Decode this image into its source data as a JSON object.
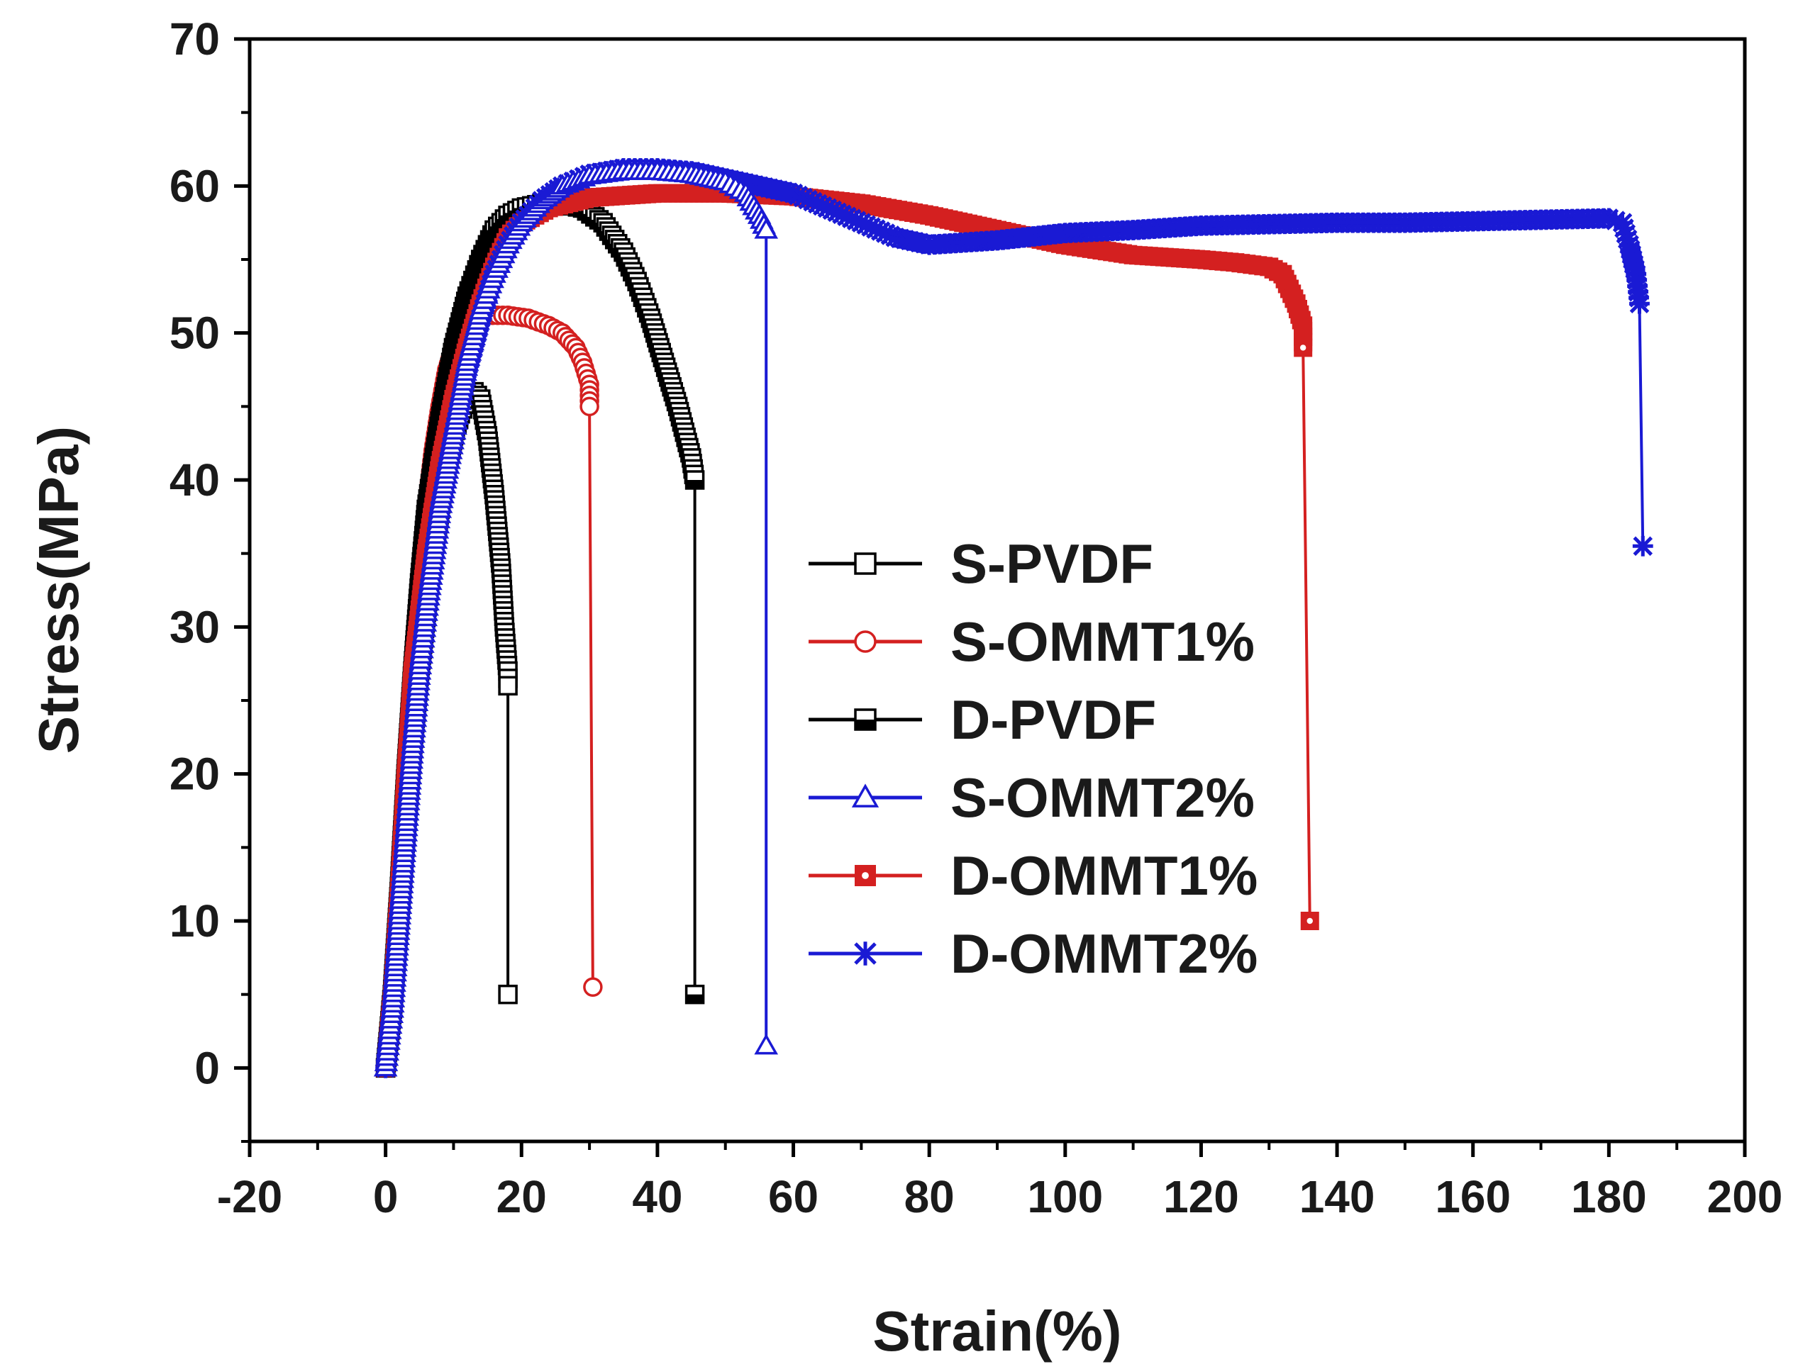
{
  "chart_data": {
    "type": "line",
    "title": "",
    "xlabel": "Strain(%)",
    "ylabel": "Stress(MPa)",
    "xlim": [
      -20,
      200
    ],
    "ylim": [
      -5,
      70
    ],
    "xticks": [
      "-20",
      "0",
      "20",
      "40",
      "60",
      "80",
      "100",
      "120",
      "140",
      "160",
      "180",
      "200"
    ],
    "yticks": [
      "0",
      "10",
      "20",
      "30",
      "40",
      "50",
      "60",
      "70"
    ],
    "grid": false,
    "legend_position": "center-right",
    "series": [
      {
        "name": "S-PVDF",
        "color": "#000000",
        "marker": "square-open",
        "points": [
          [
            0,
            0
          ],
          [
            1,
            4
          ],
          [
            2,
            10
          ],
          [
            3,
            16
          ],
          [
            4,
            22
          ],
          [
            5,
            27
          ],
          [
            6,
            31
          ],
          [
            7,
            35
          ],
          [
            8,
            38
          ],
          [
            9,
            41
          ],
          [
            10,
            43
          ],
          [
            11,
            44.5
          ],
          [
            12,
            45.5
          ],
          [
            13,
            46
          ],
          [
            14,
            45.5
          ],
          [
            15,
            43
          ],
          [
            16,
            39
          ],
          [
            17,
            34
          ],
          [
            17.5,
            30
          ],
          [
            18,
            27
          ],
          [
            18,
            26
          ],
          [
            18,
            5
          ]
        ]
      },
      {
        "name": "S-OMMT1%",
        "color": "#d42020",
        "marker": "circle-open",
        "points": [
          [
            0,
            0
          ],
          [
            1,
            5
          ],
          [
            2,
            12
          ],
          [
            3,
            20
          ],
          [
            4,
            27
          ],
          [
            5,
            33
          ],
          [
            6,
            38
          ],
          [
            7,
            42
          ],
          [
            8,
            45
          ],
          [
            9,
            47.5
          ],
          [
            10,
            49
          ],
          [
            12,
            50.5
          ],
          [
            15,
            51.2
          ],
          [
            18,
            51.2
          ],
          [
            21,
            51
          ],
          [
            24,
            50.5
          ],
          [
            26,
            50
          ],
          [
            28,
            49
          ],
          [
            29,
            48
          ],
          [
            30,
            46.5
          ],
          [
            30,
            45
          ],
          [
            30.5,
            5.5
          ]
        ]
      },
      {
        "name": "D-PVDF",
        "color": "#000000",
        "marker": "square-half",
        "points": [
          [
            0,
            0
          ],
          [
            1,
            5
          ],
          [
            2,
            12
          ],
          [
            3,
            20
          ],
          [
            4,
            27
          ],
          [
            5,
            33
          ],
          [
            6,
            38
          ],
          [
            8,
            44
          ],
          [
            10,
            49
          ],
          [
            12,
            52.5
          ],
          [
            14,
            55
          ],
          [
            16,
            57
          ],
          [
            18,
            58
          ],
          [
            20,
            58.5
          ],
          [
            23,
            58.8
          ],
          [
            26,
            58.8
          ],
          [
            29,
            58.5
          ],
          [
            32,
            57.5
          ],
          [
            35,
            55.5
          ],
          [
            37,
            53.5
          ],
          [
            39,
            51
          ],
          [
            41,
            48
          ],
          [
            43,
            45
          ],
          [
            45,
            41.5
          ],
          [
            45.5,
            40
          ],
          [
            45.5,
            5
          ]
        ]
      },
      {
        "name": "S-OMMT2%",
        "color": "#1a1ad4",
        "marker": "triangle-open",
        "points": [
          [
            0,
            0
          ],
          [
            1,
            4
          ],
          [
            2,
            10
          ],
          [
            3,
            16
          ],
          [
            4,
            22
          ],
          [
            5,
            27
          ],
          [
            6,
            31
          ],
          [
            8,
            38
          ],
          [
            10,
            43
          ],
          [
            12,
            48
          ],
          [
            14,
            51.5
          ],
          [
            16,
            54
          ],
          [
            18,
            56
          ],
          [
            20,
            57.5
          ],
          [
            23,
            59
          ],
          [
            26,
            60
          ],
          [
            30,
            60.7
          ],
          [
            35,
            61
          ],
          [
            40,
            61
          ],
          [
            45,
            60.8
          ],
          [
            50,
            60.3
          ],
          [
            53,
            59.5
          ],
          [
            55,
            58
          ],
          [
            56,
            57
          ],
          [
            56,
            1.5
          ]
        ]
      },
      {
        "name": "D-OMMT1%",
        "color": "#d42020",
        "marker": "square-filled",
        "points": [
          [
            0,
            0
          ],
          [
            1,
            5
          ],
          [
            2,
            12
          ],
          [
            3,
            20
          ],
          [
            4,
            27
          ],
          [
            6,
            35
          ],
          [
            8,
            41
          ],
          [
            10,
            45.5
          ],
          [
            12,
            49
          ],
          [
            14,
            52
          ],
          [
            16,
            54.5
          ],
          [
            18,
            56.5
          ],
          [
            20,
            57.5
          ],
          [
            24,
            58.5
          ],
          [
            30,
            59.2
          ],
          [
            40,
            59.5
          ],
          [
            50,
            59.5
          ],
          [
            60,
            59.3
          ],
          [
            70,
            58.8
          ],
          [
            80,
            58
          ],
          [
            90,
            57
          ],
          [
            100,
            56
          ],
          [
            110,
            55.3
          ],
          [
            120,
            55
          ],
          [
            125,
            54.8
          ],
          [
            130,
            54.5
          ],
          [
            132,
            54
          ],
          [
            133,
            53
          ],
          [
            134,
            52
          ],
          [
            135,
            50.5
          ],
          [
            135,
            49
          ],
          [
            136,
            10
          ]
        ]
      },
      {
        "name": "D-OMMT2%",
        "color": "#1a1ad4",
        "marker": "star",
        "points": [
          [
            0,
            0
          ],
          [
            1,
            4
          ],
          [
            2,
            10
          ],
          [
            3,
            16
          ],
          [
            4,
            22
          ],
          [
            5,
            27
          ],
          [
            6,
            31
          ],
          [
            8,
            38
          ],
          [
            10,
            43
          ],
          [
            12,
            47.5
          ],
          [
            14,
            51
          ],
          [
            16,
            54
          ],
          [
            18,
            56
          ],
          [
            20,
            57.5
          ],
          [
            23,
            59
          ],
          [
            26,
            60
          ],
          [
            30,
            60.8
          ],
          [
            35,
            61.2
          ],
          [
            40,
            61.2
          ],
          [
            45,
            61
          ],
          [
            50,
            60.5
          ],
          [
            55,
            60
          ],
          [
            60,
            59.5
          ],
          [
            65,
            58.5
          ],
          [
            70,
            57.5
          ],
          [
            75,
            56.5
          ],
          [
            80,
            56
          ],
          [
            90,
            56.3
          ],
          [
            100,
            56.8
          ],
          [
            110,
            57
          ],
          [
            120,
            57.3
          ],
          [
            130,
            57.4
          ],
          [
            140,
            57.5
          ],
          [
            150,
            57.5
          ],
          [
            160,
            57.6
          ],
          [
            170,
            57.7
          ],
          [
            180,
            57.8
          ],
          [
            182,
            57.5
          ],
          [
            183,
            56
          ],
          [
            184,
            54
          ],
          [
            184.5,
            52
          ],
          [
            185,
            35.5
          ]
        ]
      }
    ]
  }
}
